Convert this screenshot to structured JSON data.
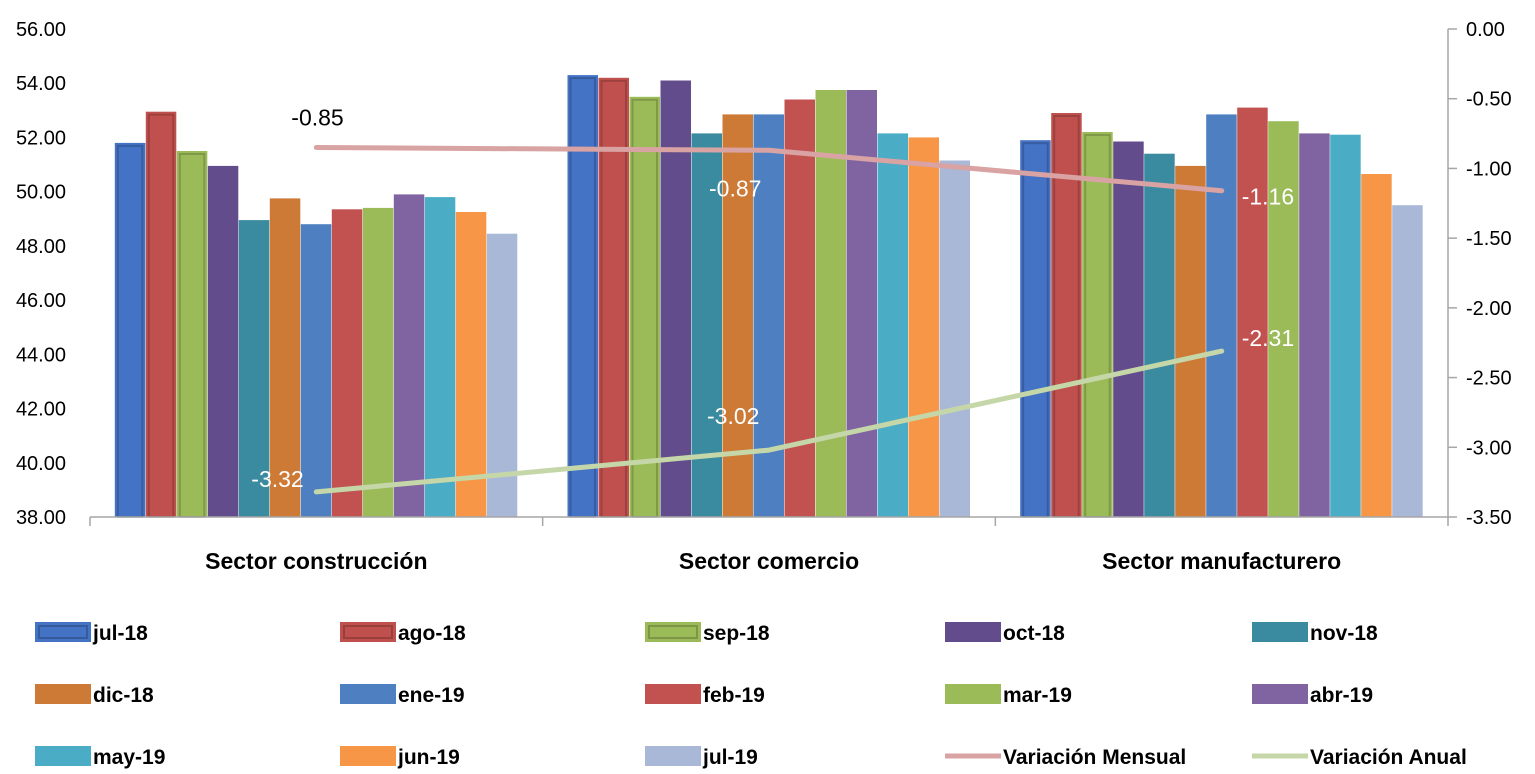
{
  "chart_data": {
    "type": "bar",
    "categories": [
      "Sector construcción",
      "Sector comercio",
      "Sector manufacturero"
    ],
    "y_left": {
      "min": 38,
      "max": 56,
      "step": 2,
      "decimals": 2
    },
    "y_right": {
      "min": -3.5,
      "max": 0,
      "step": 0.5,
      "decimals": 2
    },
    "grid": false,
    "legend_position": "bottom",
    "series": [
      {
        "name": "jul-18",
        "color": "#4472c4",
        "values": [
          51.8,
          54.3,
          51.9
        ]
      },
      {
        "name": "ago-18",
        "color": "#c0504d",
        "values": [
          52.95,
          54.2,
          52.9
        ]
      },
      {
        "name": "sep-18",
        "color": "#9bbb59",
        "values": [
          51.5,
          53.5,
          52.2
        ]
      },
      {
        "name": "oct-18",
        "color": "#634c8c",
        "values": [
          50.95,
          54.1,
          51.85
        ]
      },
      {
        "name": "nov-18",
        "color": "#3a8b9f",
        "values": [
          48.95,
          52.15,
          51.4
        ]
      },
      {
        "name": "dic-18",
        "color": "#cc7a36",
        "values": [
          49.75,
          52.85,
          50.95
        ]
      },
      {
        "name": "ene-19",
        "color": "#4e80c1",
        "values": [
          48.8,
          52.85,
          52.85
        ]
      },
      {
        "name": "feb-19",
        "color": "#c25250",
        "values": [
          49.35,
          53.4,
          53.1
        ]
      },
      {
        "name": "mar-19",
        "color": "#9bbb59",
        "values": [
          49.4,
          53.75,
          52.6
        ]
      },
      {
        "name": "abr-19",
        "color": "#8064a2",
        "values": [
          49.9,
          53.75,
          52.15
        ]
      },
      {
        "name": "may-19",
        "color": "#4bacc6",
        "values": [
          49.8,
          52.15,
          52.1
        ]
      },
      {
        "name": "jun-19",
        "color": "#f79646",
        "values": [
          49.25,
          52.0,
          50.65
        ]
      },
      {
        "name": "jul-19",
        "color": "#aab8d8",
        "values": [
          48.45,
          51.15,
          49.5
        ]
      }
    ],
    "lines": [
      {
        "name": "Variación Mensual",
        "color": "#d9a3a3",
        "axis": "right",
        "values": [
          -0.85,
          -0.87,
          -1.16
        ],
        "labels": [
          "-0.85",
          "-0.87",
          "-1.16"
        ],
        "label_colors": [
          "#000000",
          "#ffffff",
          "#ffffff"
        ]
      },
      {
        "name": "Variación Anual",
        "color": "#c5d7a8",
        "axis": "right",
        "values": [
          -3.32,
          -3.02,
          -2.31
        ],
        "labels": [
          "-3.32",
          "-3.02",
          "-2.31"
        ],
        "label_colors": [
          "#ffffff",
          "#ffffff",
          "#ffffff"
        ]
      }
    ]
  }
}
